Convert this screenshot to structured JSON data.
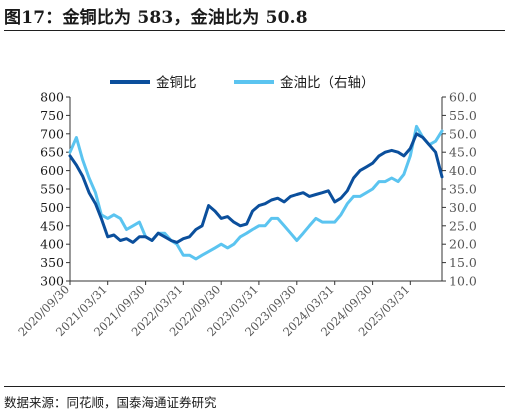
{
  "figure": {
    "title": "图17：金铜比为 583，金油比为 50.8",
    "source": "数据来源：同花顺，国泰海通证券研究"
  },
  "colors": {
    "gold_copper": "#0b4f9c",
    "gold_oil": "#5bc4f0",
    "axis": "#333333",
    "tick_text": "#555555"
  },
  "chart_data": {
    "type": "line",
    "title": "",
    "legend_position": "top-center",
    "grid": false,
    "x_ticks": [
      "2020/09/30",
      "2021/03/31",
      "2021/09/30",
      "2022/03/31",
      "2022/09/30",
      "2023/03/31",
      "2023/09/30",
      "2024/03/31",
      "2024/09/30",
      "2025/03/31"
    ],
    "x_range": [
      "2020/09/30",
      "2025/08/31"
    ],
    "y_left": {
      "min": 300,
      "max": 800,
      "ticks": [
        "300",
        "350",
        "400",
        "450",
        "500",
        "550",
        "600",
        "650",
        "700",
        "750",
        "800"
      ]
    },
    "y_right": {
      "min": 10,
      "max": 60,
      "ticks": [
        "10.0",
        "15.0",
        "20.0",
        "25.0",
        "30.0",
        "35.0",
        "40.0",
        "45.0",
        "50.0",
        "55.0",
        "60.0"
      ]
    },
    "series": [
      {
        "name": "金铜比",
        "axis": "left",
        "points": [
          [
            "2020/09/30",
            640
          ],
          [
            "2020/10/31",
            615
          ],
          [
            "2020/11/30",
            585
          ],
          [
            "2020/12/31",
            540
          ],
          [
            "2021/01/31",
            510
          ],
          [
            "2021/02/28",
            470
          ],
          [
            "2021/03/31",
            420
          ],
          [
            "2021/04/30",
            425
          ],
          [
            "2021/05/31",
            410
          ],
          [
            "2021/06/30",
            415
          ],
          [
            "2021/07/31",
            405
          ],
          [
            "2021/08/31",
            420
          ],
          [
            "2021/09/30",
            420
          ],
          [
            "2021/10/31",
            410
          ],
          [
            "2021/11/30",
            430
          ],
          [
            "2021/12/31",
            420
          ],
          [
            "2022/01/31",
            410
          ],
          [
            "2022/02/28",
            405
          ],
          [
            "2022/03/31",
            415
          ],
          [
            "2022/04/30",
            420
          ],
          [
            "2022/05/31",
            440
          ],
          [
            "2022/06/30",
            450
          ],
          [
            "2022/07/31",
            505
          ],
          [
            "2022/08/31",
            490
          ],
          [
            "2022/09/30",
            470
          ],
          [
            "2022/10/31",
            475
          ],
          [
            "2022/11/30",
            460
          ],
          [
            "2022/12/31",
            450
          ],
          [
            "2023/01/31",
            455
          ],
          [
            "2023/02/28",
            490
          ],
          [
            "2023/03/31",
            505
          ],
          [
            "2023/04/30",
            510
          ],
          [
            "2023/05/31",
            520
          ],
          [
            "2023/06/30",
            525
          ],
          [
            "2023/07/31",
            515
          ],
          [
            "2023/08/31",
            530
          ],
          [
            "2023/09/30",
            535
          ],
          [
            "2023/10/31",
            540
          ],
          [
            "2023/11/30",
            530
          ],
          [
            "2023/12/31",
            535
          ],
          [
            "2024/01/31",
            540
          ],
          [
            "2024/02/29",
            545
          ],
          [
            "2024/03/31",
            515
          ],
          [
            "2024/04/30",
            525
          ],
          [
            "2024/05/31",
            545
          ],
          [
            "2024/06/30",
            580
          ],
          [
            "2024/07/31",
            600
          ],
          [
            "2024/08/31",
            610
          ],
          [
            "2024/09/30",
            620
          ],
          [
            "2024/10/31",
            640
          ],
          [
            "2024/11/30",
            650
          ],
          [
            "2024/12/31",
            655
          ],
          [
            "2025/01/31",
            650
          ],
          [
            "2025/02/28",
            640
          ],
          [
            "2025/03/31",
            660
          ],
          [
            "2025/04/30",
            700
          ],
          [
            "2025/05/31",
            690
          ],
          [
            "2025/06/30",
            670
          ],
          [
            "2025/07/31",
            650
          ],
          [
            "2025/08/31",
            583
          ]
        ]
      },
      {
        "name": "金油比（右轴）",
        "axis": "right",
        "points": [
          [
            "2020/09/30",
            45
          ],
          [
            "2020/10/31",
            49
          ],
          [
            "2020/11/30",
            43
          ],
          [
            "2020/12/31",
            38
          ],
          [
            "2021/01/31",
            34
          ],
          [
            "2021/02/28",
            28
          ],
          [
            "2021/03/31",
            27
          ],
          [
            "2021/04/30",
            28
          ],
          [
            "2021/05/31",
            27
          ],
          [
            "2021/06/30",
            24
          ],
          [
            "2021/07/31",
            25
          ],
          [
            "2021/08/31",
            26
          ],
          [
            "2021/09/30",
            22
          ],
          [
            "2021/10/31",
            21
          ],
          [
            "2021/11/30",
            23
          ],
          [
            "2021/12/31",
            23
          ],
          [
            "2022/01/31",
            21
          ],
          [
            "2022/02/28",
            20
          ],
          [
            "2022/03/31",
            17
          ],
          [
            "2022/04/30",
            17
          ],
          [
            "2022/05/31",
            16
          ],
          [
            "2022/06/30",
            17
          ],
          [
            "2022/07/31",
            18
          ],
          [
            "2022/08/31",
            19
          ],
          [
            "2022/09/30",
            20
          ],
          [
            "2022/10/31",
            19
          ],
          [
            "2022/11/30",
            20
          ],
          [
            "2022/12/31",
            22
          ],
          [
            "2023/01/31",
            23
          ],
          [
            "2023/02/28",
            24
          ],
          [
            "2023/03/31",
            25
          ],
          [
            "2023/04/30",
            25
          ],
          [
            "2023/05/31",
            27
          ],
          [
            "2023/06/30",
            27
          ],
          [
            "2023/07/31",
            25
          ],
          [
            "2023/08/31",
            23
          ],
          [
            "2023/09/30",
            21
          ],
          [
            "2023/10/31",
            23
          ],
          [
            "2023/11/30",
            25
          ],
          [
            "2023/12/31",
            27
          ],
          [
            "2024/01/31",
            26
          ],
          [
            "2024/02/29",
            26
          ],
          [
            "2024/03/31",
            26
          ],
          [
            "2024/04/30",
            28
          ],
          [
            "2024/05/31",
            31
          ],
          [
            "2024/06/30",
            33
          ],
          [
            "2024/07/31",
            33
          ],
          [
            "2024/08/31",
            34
          ],
          [
            "2024/09/30",
            35
          ],
          [
            "2024/10/31",
            37
          ],
          [
            "2024/11/30",
            37
          ],
          [
            "2024/12/31",
            38
          ],
          [
            "2025/01/31",
            37
          ],
          [
            "2025/02/28",
            39
          ],
          [
            "2025/03/31",
            44
          ],
          [
            "2025/04/30",
            52
          ],
          [
            "2025/05/31",
            49
          ],
          [
            "2025/06/30",
            47
          ],
          [
            "2025/07/31",
            48
          ],
          [
            "2025/08/31",
            50.8
          ]
        ]
      }
    ]
  }
}
